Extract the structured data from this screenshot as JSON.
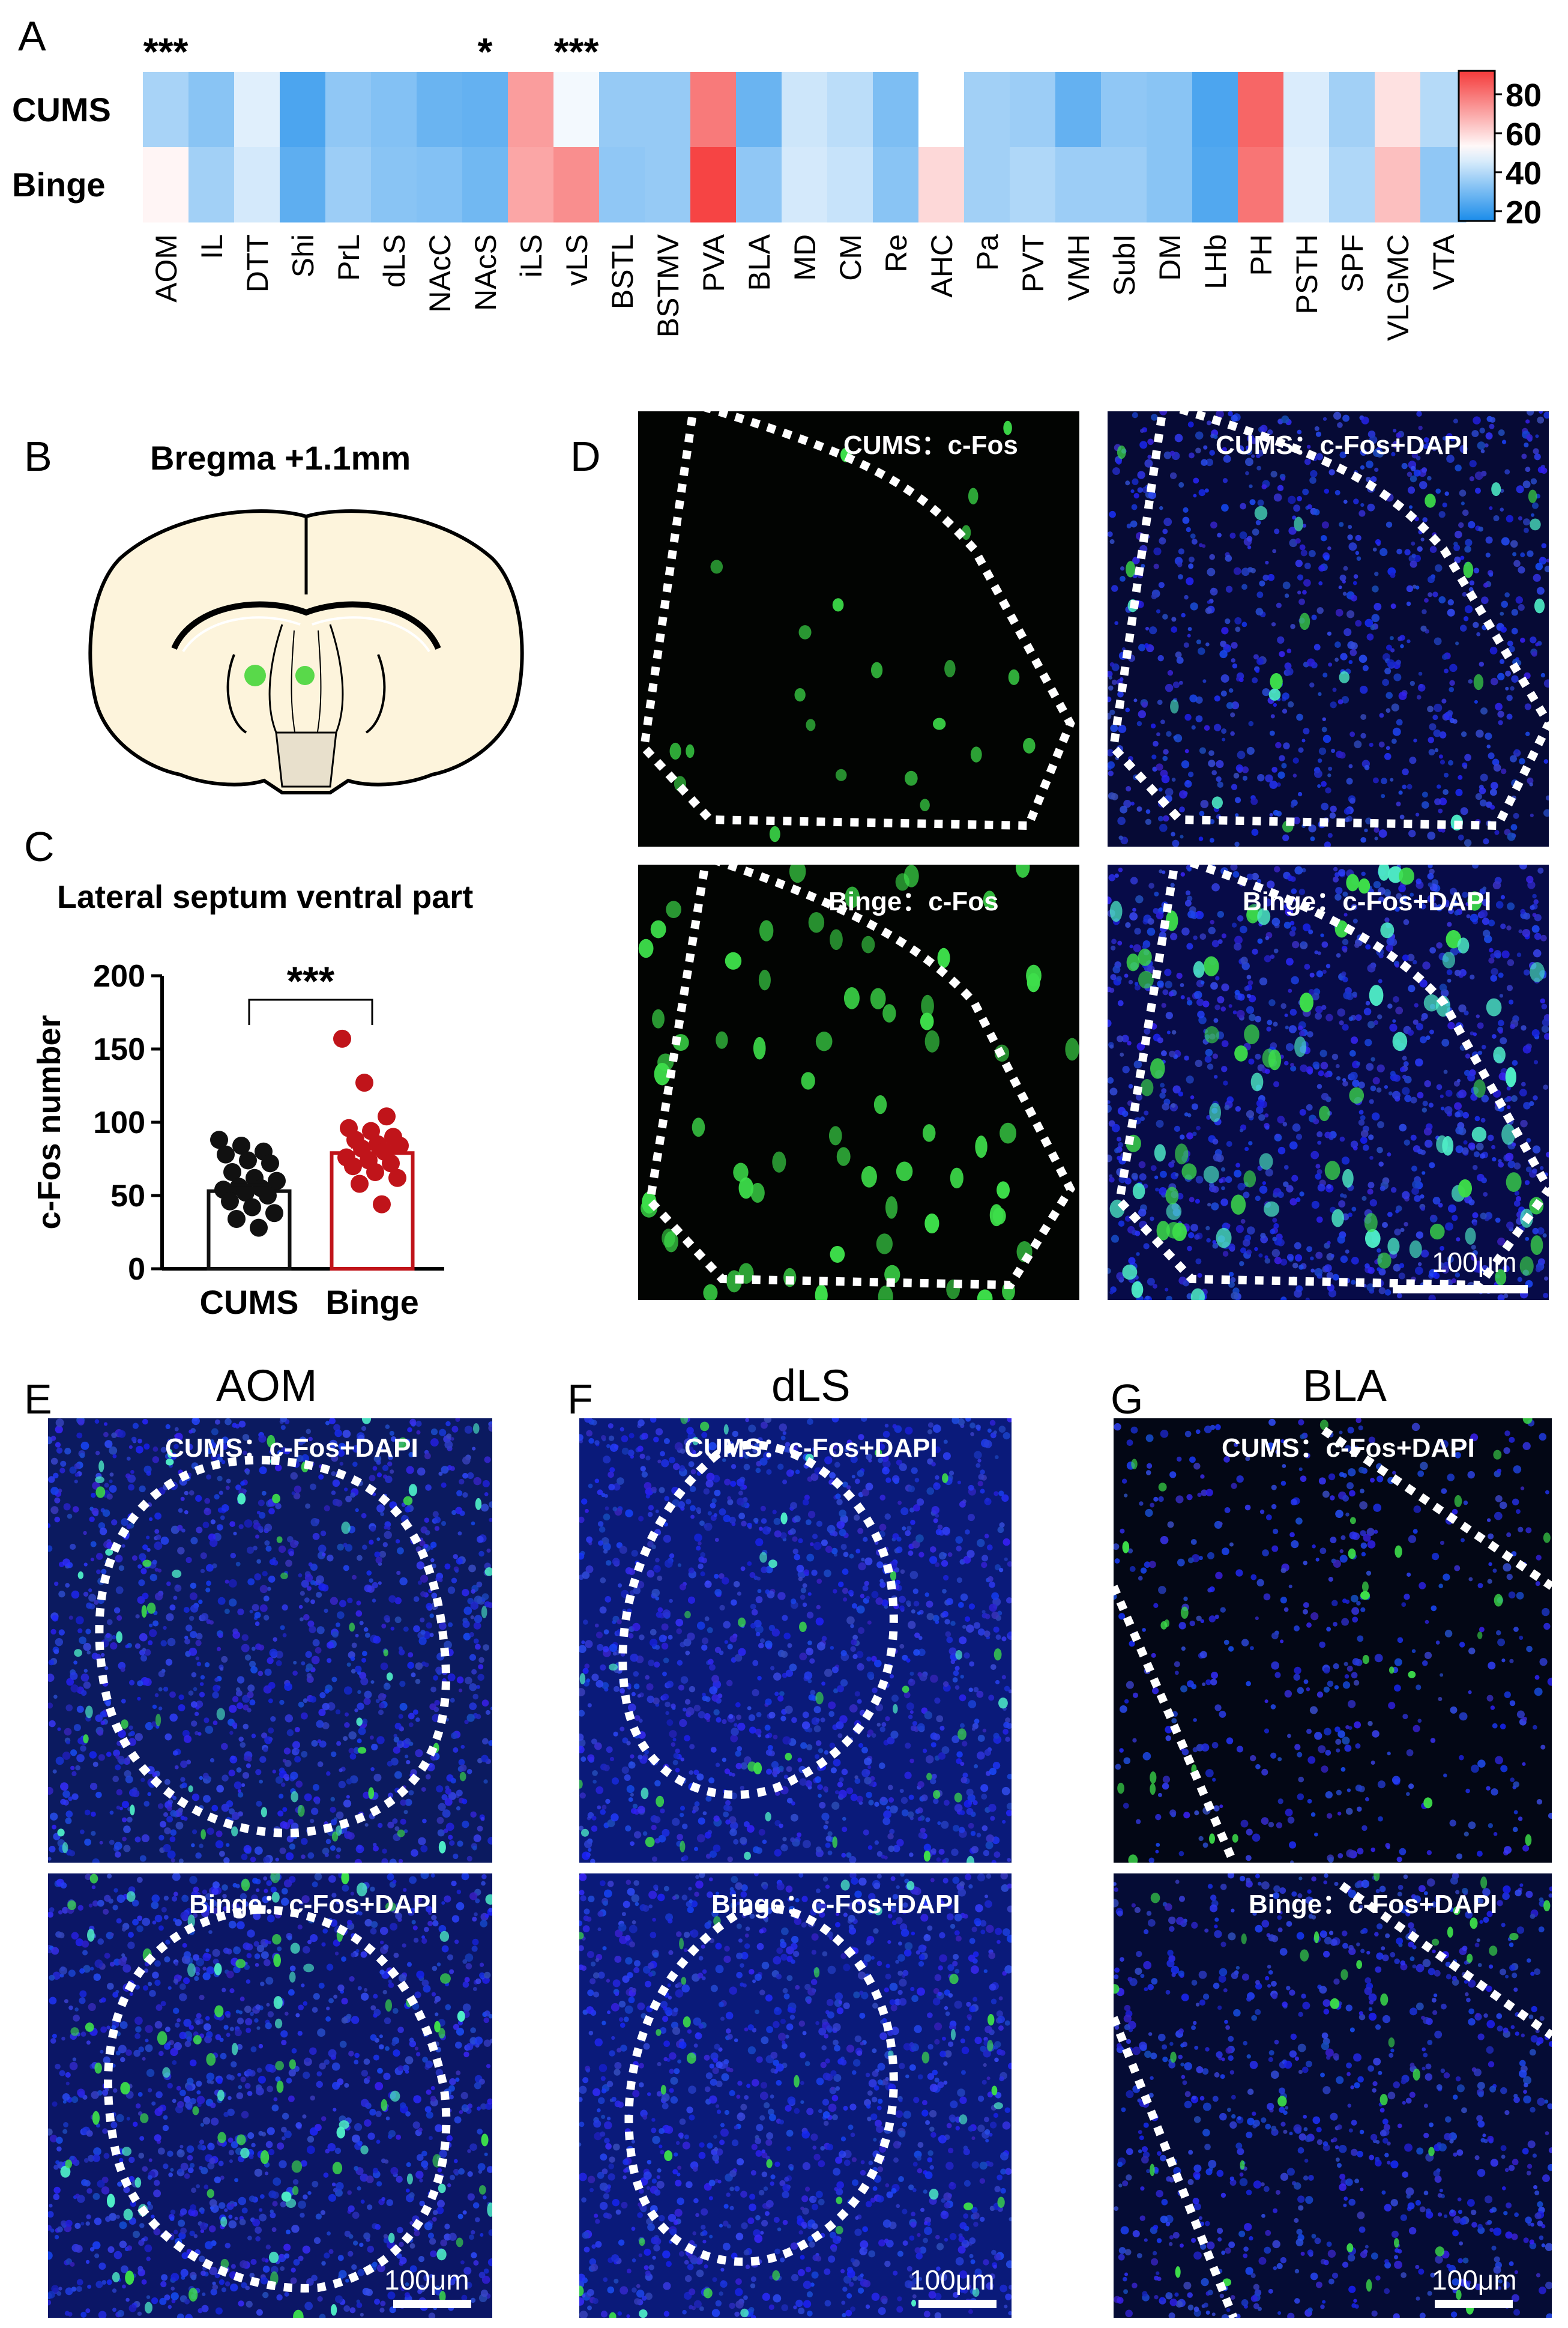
{
  "panels": {
    "A": "A",
    "B": "B",
    "C": "C",
    "D": "D",
    "E": "E",
    "F": "F",
    "G": "G"
  },
  "heatmap": {
    "row_labels": [
      "CUMS",
      "Binge"
    ],
    "stars": [
      {
        "region": "AOM",
        "text": "***"
      },
      {
        "region": "NAcS",
        "text": "*"
      },
      {
        "region": "vLS",
        "text": "***"
      }
    ],
    "colorbar": {
      "ticks": [
        "80",
        "60",
        "40",
        "20"
      ],
      "min_color": "#1a8cea",
      "mid_color": "#ffffff",
      "max_color": "#f53a3a"
    }
  },
  "chart_data": [
    {
      "type": "heatmap",
      "title": "",
      "categories": [
        "AOM",
        "IL",
        "DTT",
        "Shi",
        "PrL",
        "dLS",
        "NAcC",
        "NAcS",
        "iLS",
        "vLS",
        "BSTL",
        "BSTMV",
        "PVA",
        "BLA",
        "MD",
        "CM",
        "Re",
        "AHC",
        "Pa",
        "PVT",
        "VMH",
        "SubI",
        "DM",
        "LHb",
        "PH",
        "PSTH",
        "SPF",
        "VLGMC",
        "VTA"
      ],
      "series": [
        {
          "name": "CUMS",
          "values": [
            38,
            33,
            47,
            23,
            34,
            32,
            28,
            27,
            72,
            50,
            35,
            35,
            79,
            28,
            44,
            41,
            31,
            52,
            37,
            36,
            27,
            34,
            33,
            23,
            83,
            46,
            37,
            58,
            40
          ]
        },
        {
          "name": "Binge",
          "values": [
            54,
            37,
            45,
            26,
            36,
            33,
            32,
            29,
            70,
            75,
            34,
            35,
            90,
            34,
            45,
            43,
            33,
            60,
            37,
            39,
            36,
            36,
            33,
            24,
            80,
            47,
            39,
            65,
            34
          ]
        }
      ],
      "colorbar_range": [
        15,
        92
      ]
    },
    {
      "type": "bar",
      "title": "Lateral septum ventral part",
      "xlabel": "",
      "ylabel": "c-Fos number",
      "categories": [
        "CUMS",
        "Binge"
      ],
      "values": [
        53,
        79
      ],
      "ylim": [
        0,
        200
      ],
      "yticks": [
        "0",
        "50",
        "100",
        "150",
        "200"
      ],
      "significance": "***",
      "points": {
        "CUMS": [
          88,
          84,
          80,
          78,
          74,
          72,
          66,
          62,
          60,
          56,
          55,
          54,
          52,
          50,
          46,
          42,
          38,
          34,
          28
        ],
        "Binge": [
          157,
          127,
          104,
          96,
          94,
          90,
          88,
          85,
          84,
          82,
          80,
          76,
          74,
          72,
          70,
          66,
          62,
          58,
          44
        ]
      },
      "colors": {
        "CUMS": "#111111",
        "Binge": "#c0141a"
      }
    }
  ],
  "panel_b": {
    "title": "Bregma +1.1mm"
  },
  "panel_d": {
    "labels": [
      "CUMS：c-Fos",
      "CUMS：c-Fos+DAPI",
      "Binge：c-Fos",
      "Binge：c-Fos+DAPI"
    ],
    "scale": "100μm"
  },
  "panel_e": {
    "title": "AOM",
    "top": "CUMS：c-Fos+DAPI",
    "bottom": "Binge：c-Fos+DAPI",
    "scale": "100μm"
  },
  "panel_f": {
    "title": "dLS",
    "top": "CUMS：c-Fos+DAPI",
    "bottom": "Binge：c-Fos+DAPI",
    "scale": "100μm"
  },
  "panel_g": {
    "title": "BLA",
    "top": "CUMS：c-Fos+DAPI",
    "bottom": "Binge：c-Fos+DAPI",
    "scale": "100μm"
  }
}
